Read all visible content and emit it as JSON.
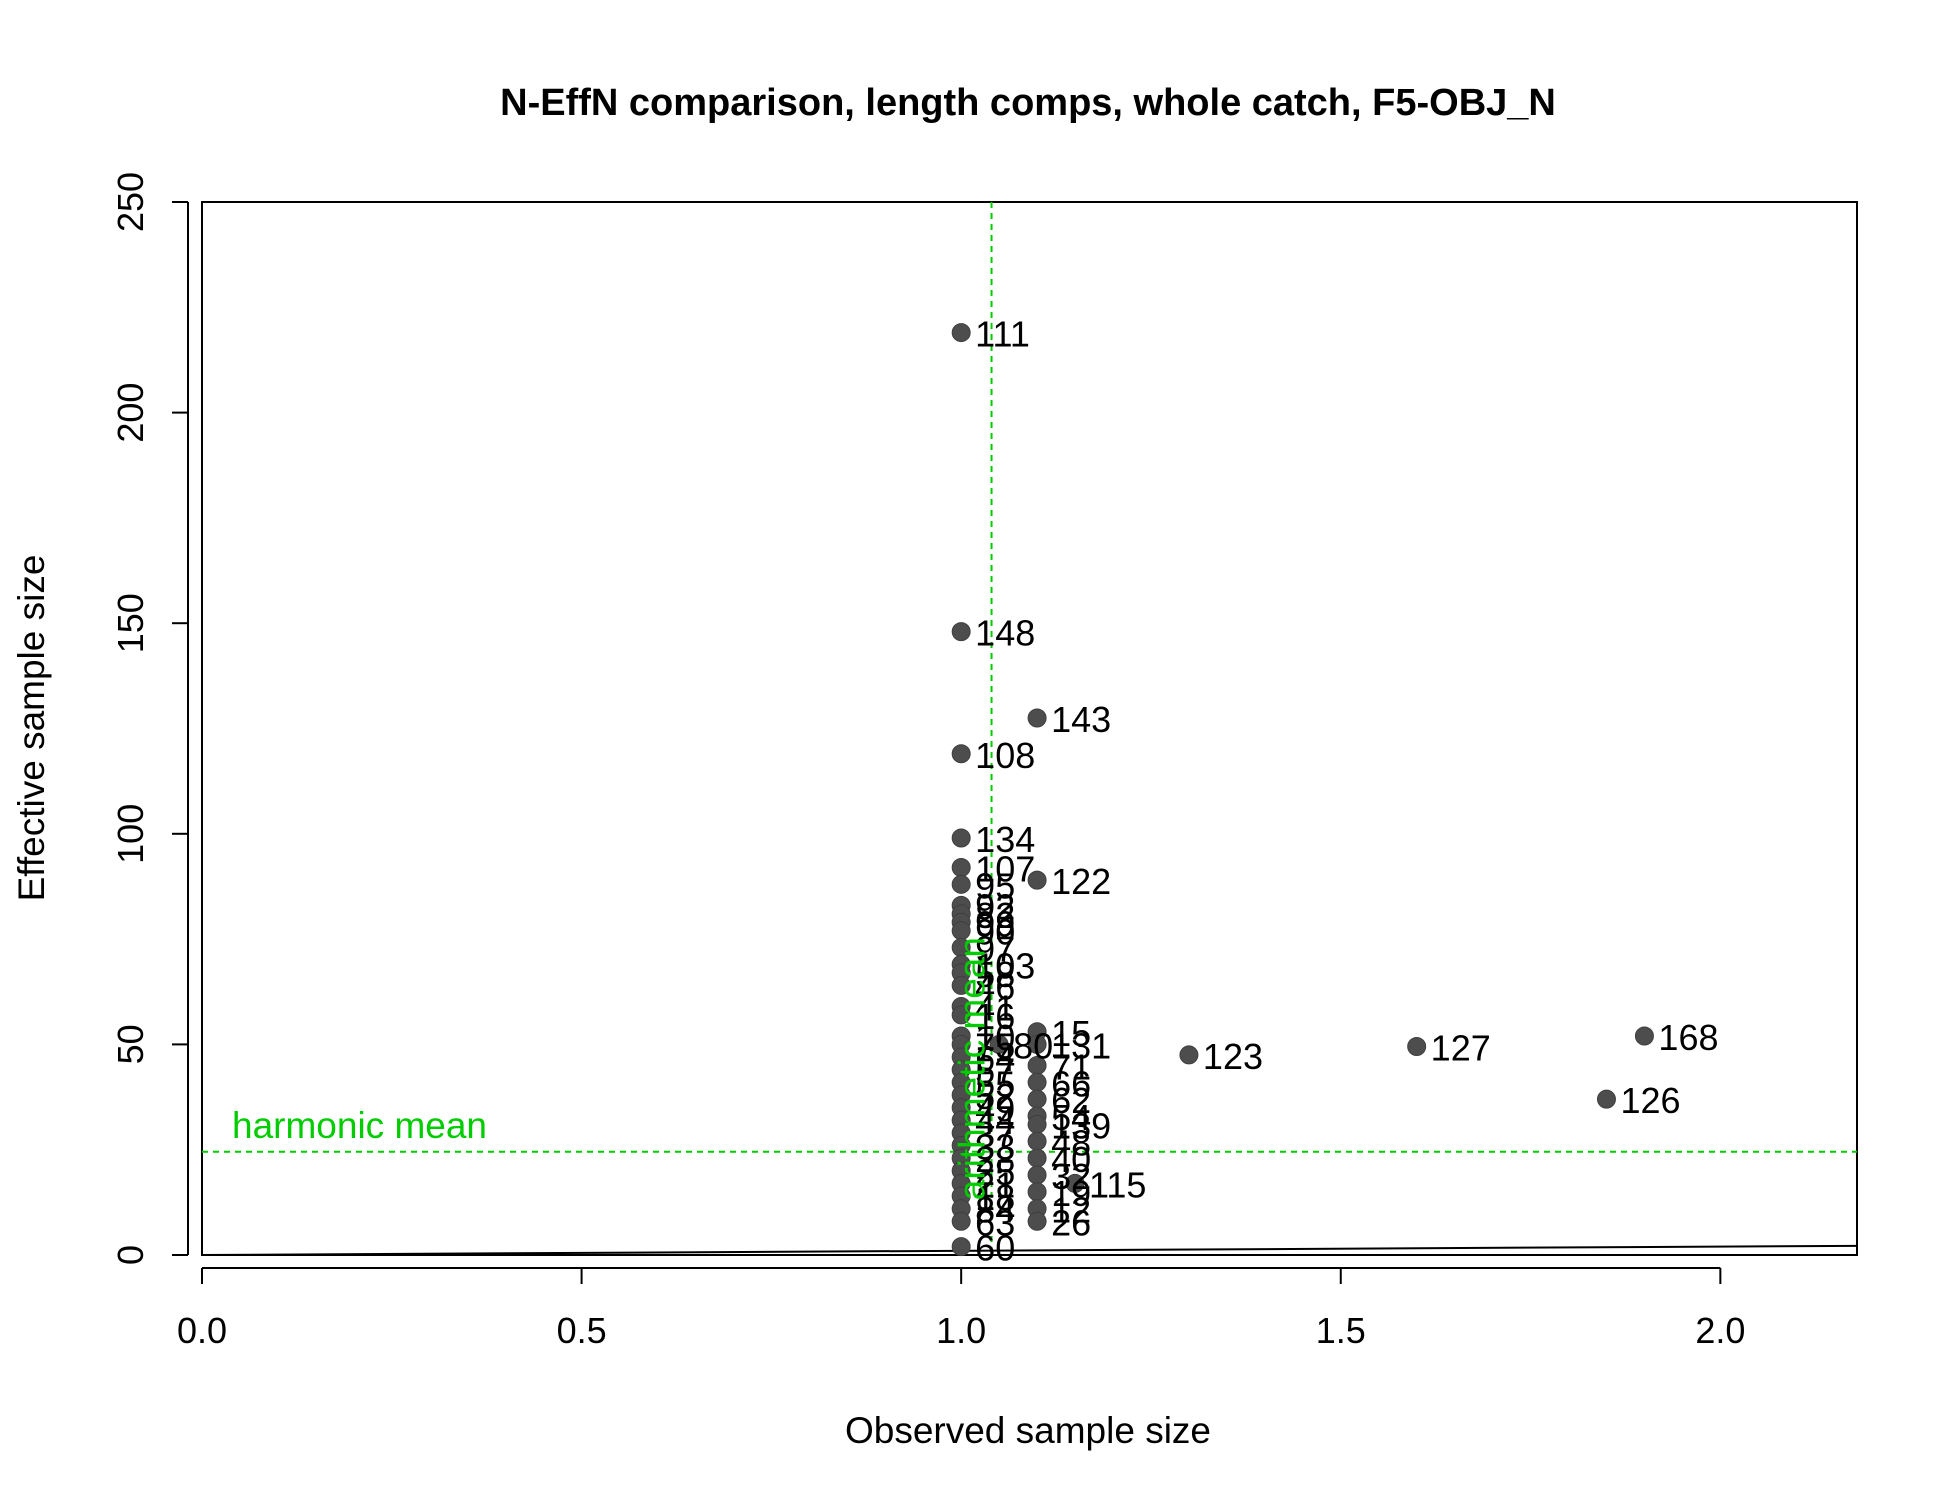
{
  "chart_data": {
    "type": "scatter",
    "title": "N-EffN comparison, length comps, whole catch, F5-OBJ_N",
    "xlabel": "Observed sample size",
    "ylabel": "Effective sample size",
    "xlim": [
      0,
      2.18
    ],
    "ylim": [
      0,
      250
    ],
    "xticks": [
      0.0,
      0.5,
      1.0,
      1.5,
      2.0
    ],
    "xtick_labels": [
      "0.0",
      "0.5",
      "1.0",
      "1.5",
      "2.0"
    ],
    "yticks": [
      0,
      50,
      100,
      150,
      200,
      250
    ],
    "ytick_labels": [
      "0",
      "50",
      "100",
      "150",
      "200",
      "250"
    ],
    "points": [
      {
        "x": 1.0,
        "y": 219,
        "label": "111"
      },
      {
        "x": 1.0,
        "y": 148,
        "label": "148"
      },
      {
        "x": 1.1,
        "y": 127.5,
        "label": "143"
      },
      {
        "x": 1.0,
        "y": 119,
        "label": "108"
      },
      {
        "x": 1.0,
        "y": 99,
        "label": "134"
      },
      {
        "x": 1.0,
        "y": 92,
        "label": "107"
      },
      {
        "x": 1.1,
        "y": 89,
        "label": "122"
      },
      {
        "x": 1.0,
        "y": 88,
        "label": "95"
      },
      {
        "x": 1.0,
        "y": 83,
        "label": "92"
      },
      {
        "x": 1.0,
        "y": 81,
        "label": "82"
      },
      {
        "x": 1.0,
        "y": 79,
        "label": "99"
      },
      {
        "x": 1.0,
        "y": 77,
        "label": "90"
      },
      {
        "x": 1.0,
        "y": 73,
        "label": "97"
      },
      {
        "x": 1.0,
        "y": 69,
        "label": "103"
      },
      {
        "x": 1.0,
        "y": 67,
        "label": "58"
      },
      {
        "x": 1.0,
        "y": 64,
        "label": "46"
      },
      {
        "x": 1.0,
        "y": 59,
        "label": "41"
      },
      {
        "x": 1.0,
        "y": 57,
        "label": "16"
      },
      {
        "x": 1.0,
        "y": 52,
        "label": "10"
      },
      {
        "x": 1.0,
        "y": 50,
        "label": "75"
      },
      {
        "x": 1.0,
        "y": 47,
        "label": "64"
      },
      {
        "x": 1.0,
        "y": 44,
        "label": "57"
      },
      {
        "x": 1.0,
        "y": 41,
        "label": "55"
      },
      {
        "x": 1.0,
        "y": 38,
        "label": "52"
      },
      {
        "x": 1.0,
        "y": 35,
        "label": "49"
      },
      {
        "x": 1.0,
        "y": 32,
        "label": "44"
      },
      {
        "x": 1.0,
        "y": 29,
        "label": "37"
      },
      {
        "x": 1.0,
        "y": 26,
        "label": "33"
      },
      {
        "x": 1.0,
        "y": 23,
        "label": "28"
      },
      {
        "x": 1.0,
        "y": 20,
        "label": "25"
      },
      {
        "x": 1.0,
        "y": 17,
        "label": "21"
      },
      {
        "x": 1.0,
        "y": 14,
        "label": "18"
      },
      {
        "x": 1.0,
        "y": 11,
        "label": "84"
      },
      {
        "x": 1.0,
        "y": 8,
        "label": "63"
      },
      {
        "x": 1.0,
        "y": 2,
        "label": "60"
      },
      {
        "x": 1.05,
        "y": 50,
        "label": "80"
      },
      {
        "x": 1.1,
        "y": 53,
        "label": "15"
      },
      {
        "x": 1.1,
        "y": 50,
        "label": "131"
      },
      {
        "x": 1.1,
        "y": 45,
        "label": "71"
      },
      {
        "x": 1.1,
        "y": 41,
        "label": "66"
      },
      {
        "x": 1.1,
        "y": 37,
        "label": "62"
      },
      {
        "x": 1.1,
        "y": 33,
        "label": "54"
      },
      {
        "x": 1.1,
        "y": 31,
        "label": "139"
      },
      {
        "x": 1.1,
        "y": 27,
        "label": "48"
      },
      {
        "x": 1.1,
        "y": 23,
        "label": "40"
      },
      {
        "x": 1.1,
        "y": 19,
        "label": "32"
      },
      {
        "x": 1.1,
        "y": 15,
        "label": "19"
      },
      {
        "x": 1.1,
        "y": 11,
        "label": "12"
      },
      {
        "x": 1.1,
        "y": 8,
        "label": "26"
      },
      {
        "x": 1.15,
        "y": 17,
        "label": "115"
      },
      {
        "x": 1.3,
        "y": 47.5,
        "label": "123"
      },
      {
        "x": 1.6,
        "y": 49.5,
        "label": "127"
      },
      {
        "x": 1.85,
        "y": 37,
        "label": "126"
      },
      {
        "x": 1.9,
        "y": 52,
        "label": "168"
      }
    ],
    "reference_lines": {
      "harmonic_mean": {
        "label": "harmonic mean",
        "y": 24.5
      },
      "arithmetic_mean": {
        "label": "arithmetic mean",
        "x": 1.04
      }
    },
    "one_to_one_line": true,
    "grid": false,
    "legend": "none"
  },
  "colors": {
    "points": "#4d4d4d",
    "reference_lines": "#00cc00",
    "axes": "#000000"
  }
}
